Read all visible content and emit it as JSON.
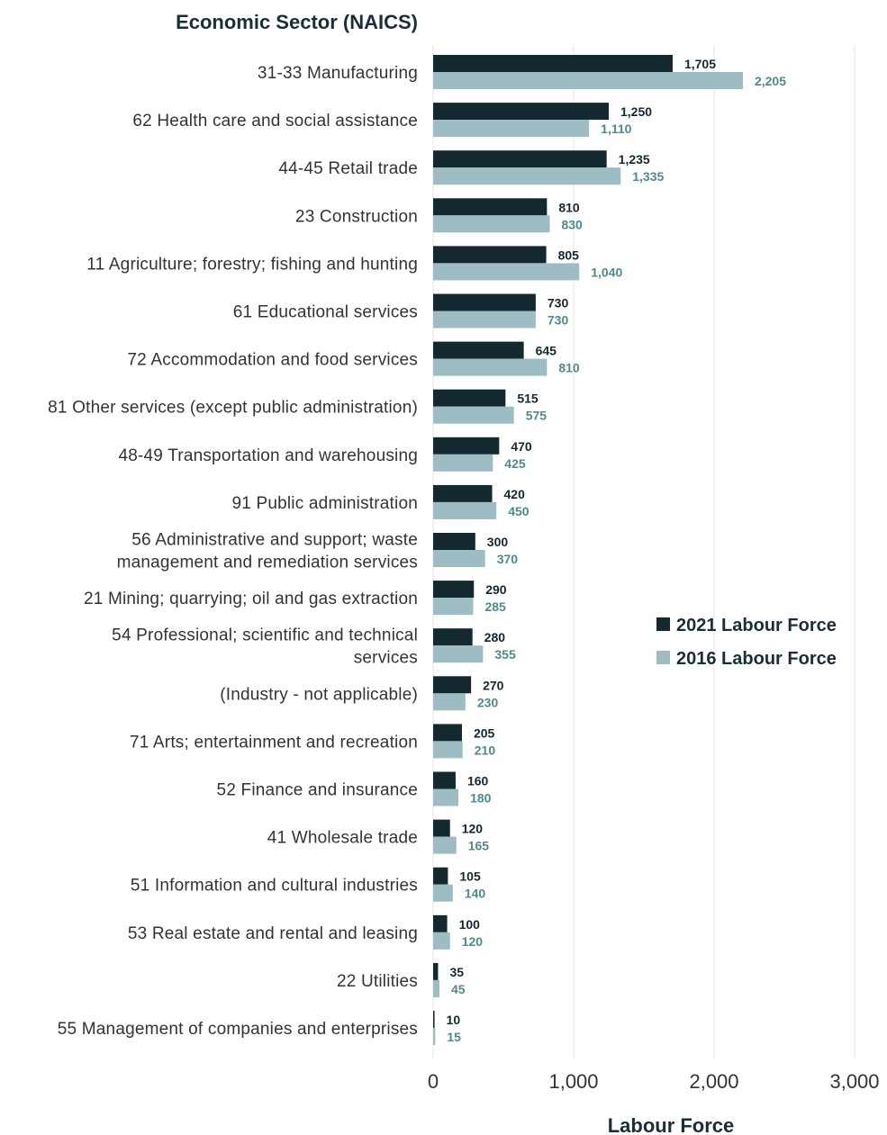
{
  "chart_data": {
    "type": "bar",
    "orientation": "horizontal",
    "ylabel": "Economic Sector (NAICS)",
    "xlabel": "Labour Force",
    "xlim": [
      0,
      3000
    ],
    "xticks": [
      0,
      1000,
      2000,
      3000
    ],
    "xtick_labels": [
      "0",
      "1,000",
      "2,000",
      "3,000"
    ],
    "grid": "vertical",
    "legend_position": "right",
    "categories": [
      "31-33 Manufacturing",
      "62 Health care and social assistance",
      "44-45 Retail trade",
      "23 Construction",
      "11 Agriculture; forestry; fishing and hunting",
      "61 Educational services",
      "72 Accommodation and food services",
      "81 Other services (except public administration)",
      "48-49 Transportation and warehousing",
      "91 Public administration",
      "56 Administrative and support; waste management and remediation services",
      "21 Mining; quarrying; oil and gas extraction",
      "54 Professional; scientific and technical services",
      "(Industry - not applicable)",
      "71 Arts; entertainment and recreation",
      "52 Finance and insurance",
      "41 Wholesale trade",
      "51 Information and cultural industries",
      "53 Real estate and rental and leasing",
      "22 Utilities",
      "55 Management of companies and enterprises"
    ],
    "category_label_lines": [
      [
        "31-33 Manufacturing"
      ],
      [
        "62 Health care and social assistance"
      ],
      [
        "44-45 Retail trade"
      ],
      [
        "23 Construction"
      ],
      [
        "11 Agriculture; forestry; fishing and hunting"
      ],
      [
        "61 Educational services"
      ],
      [
        "72 Accommodation and food services"
      ],
      [
        "81 Other services (except public administration)"
      ],
      [
        "48-49 Transportation and warehousing"
      ],
      [
        "91 Public administration"
      ],
      [
        "56 Administrative and support; waste",
        "management and remediation services"
      ],
      [
        "21 Mining; quarrying; oil and gas extraction"
      ],
      [
        "54 Professional; scientific and technical",
        "services"
      ],
      [
        "(Industry - not applicable)"
      ],
      [
        "71 Arts; entertainment and recreation"
      ],
      [
        "52 Finance and insurance"
      ],
      [
        "41 Wholesale trade"
      ],
      [
        "51 Information and cultural industries"
      ],
      [
        "53 Real estate and rental and leasing"
      ],
      [
        "22 Utilities"
      ],
      [
        "55 Management of companies and enterprises"
      ]
    ],
    "series": [
      {
        "name": "2021 Labour Force",
        "color": "#13282f",
        "label_color": "#13282f",
        "values": [
          1705,
          1250,
          1235,
          810,
          805,
          730,
          645,
          515,
          470,
          420,
          300,
          290,
          280,
          270,
          205,
          160,
          120,
          105,
          100,
          35,
          10
        ],
        "value_labels": [
          "1,705",
          "1,250",
          "1,235",
          "810",
          "805",
          "730",
          "645",
          "515",
          "470",
          "420",
          "300",
          "290",
          "280",
          "270",
          "205",
          "160",
          "120",
          "105",
          "100",
          "35",
          "10"
        ]
      },
      {
        "name": "2016 Labour Force",
        "color": "#9dbcc3",
        "label_color": "#4f8a8b",
        "values": [
          2205,
          1110,
          1335,
          830,
          1040,
          730,
          810,
          575,
          425,
          450,
          370,
          285,
          355,
          230,
          210,
          180,
          165,
          140,
          120,
          45,
          15
        ],
        "value_labels": [
          "2,205",
          "1,110",
          "1,335",
          "830",
          "1,040",
          "730",
          "810",
          "575",
          "425",
          "450",
          "370",
          "285",
          "355",
          "230",
          "210",
          "180",
          "165",
          "140",
          "120",
          "45",
          "15"
        ]
      }
    ]
  }
}
